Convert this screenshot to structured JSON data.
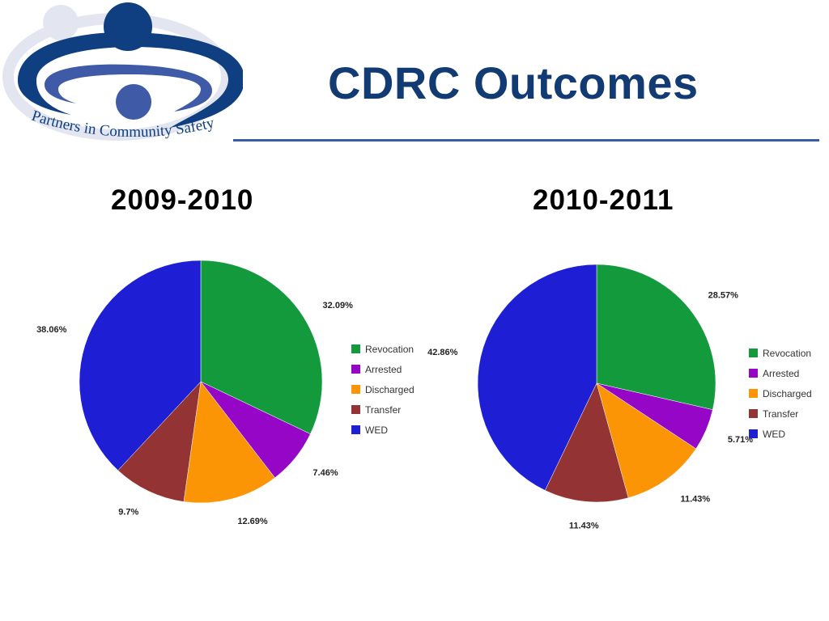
{
  "header": {
    "title": "CDRC Outcomes",
    "logo_text": "Partners in Community Safety"
  },
  "colors": {
    "title": "#123b73",
    "logo_dark": "#0f3f80",
    "logo_light": "#3f5aa6",
    "logo_pale": "#e3e6f1",
    "rule": "#3a5ba8"
  },
  "chart_data": [
    {
      "type": "pie",
      "title": "2009-2010",
      "categories": [
        "Revocation",
        "Arrested",
        "Discharged",
        "Transfer",
        "WED"
      ],
      "values": [
        32.09,
        7.46,
        12.69,
        9.7,
        38.06
      ],
      "labels": [
        "32.09%",
        "7.46%",
        "12.69%",
        "9.7%",
        "38.06%"
      ],
      "colors": [
        "#139a3c",
        "#9506c6",
        "#fc9505",
        "#943333",
        "#1e1ed4"
      ],
      "legend": "right"
    },
    {
      "type": "pie",
      "title": "2010-2011",
      "categories": [
        "Revocation",
        "Arrested",
        "Discharged",
        "Transfer",
        "WED"
      ],
      "values": [
        28.57,
        5.71,
        11.43,
        11.43,
        42.86
      ],
      "labels": [
        "28.57%",
        "5.71%",
        "11.43%",
        "11.43%",
        "42.86%"
      ],
      "colors": [
        "#139a3c",
        "#9506c6",
        "#fc9505",
        "#943333",
        "#1e1ed4"
      ],
      "legend": "right"
    }
  ]
}
